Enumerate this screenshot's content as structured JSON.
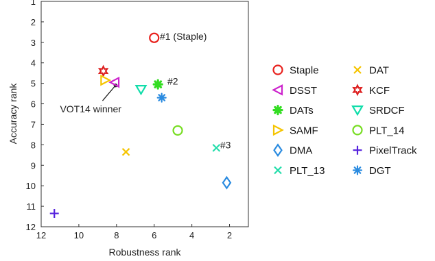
{
  "chart_data": {
    "type": "scatter",
    "xlabel": "Robustness rank",
    "ylabel": "Accuracy rank",
    "xlim": [
      1,
      12
    ],
    "ylim": [
      1,
      12
    ],
    "x_reversed": true,
    "y_reversed": true,
    "x_ticks": [
      12,
      10,
      8,
      6,
      4,
      2
    ],
    "y_ticks": [
      1,
      2,
      3,
      4,
      5,
      6,
      7,
      8,
      9,
      10,
      11,
      12
    ],
    "grid": false,
    "legend_position": "right, outside plot",
    "series": [
      {
        "name": "Staple",
        "marker": "circle",
        "color": "#e8211d",
        "x": 6.0,
        "y": 2.78
      },
      {
        "name": "DAT",
        "marker": "x",
        "color": "#f5c400",
        "x": 7.5,
        "y": 8.35
      },
      {
        "name": "DSST",
        "marker": "triangle-left",
        "color": "#cc22cc",
        "x": 8.1,
        "y": 4.95
      },
      {
        "name": "KCF",
        "marker": "hexagram",
        "color": "#dd1f1f",
        "x": 8.7,
        "y": 4.4
      },
      {
        "name": "DATs",
        "marker": "asterisk-bold",
        "color": "#33dd22",
        "x": 5.8,
        "y": 5.05
      },
      {
        "name": "SRDCF",
        "marker": "triangle-down",
        "color": "#11ddaa",
        "x": 6.7,
        "y": 5.3
      },
      {
        "name": "SAMF",
        "marker": "triangle-right",
        "color": "#f5c400",
        "x": 8.6,
        "y": 4.85
      },
      {
        "name": "PLT_14",
        "marker": "circle",
        "color": "#77dd22",
        "x": 4.75,
        "y": 7.3
      },
      {
        "name": "DMA",
        "marker": "diamond",
        "color": "#2a8be0",
        "x": 2.15,
        "y": 9.85
      },
      {
        "name": "PixelTrack",
        "marker": "plus",
        "color": "#5522dd",
        "x": 11.3,
        "y": 11.35
      },
      {
        "name": "PLT_13",
        "marker": "x",
        "color": "#22ddaa",
        "x": 2.7,
        "y": 8.15
      },
      {
        "name": "DGT",
        "marker": "asterisk",
        "color": "#2a8be0",
        "x": 5.6,
        "y": 5.7
      }
    ],
    "annotations": [
      {
        "text": "#1 (Staple)",
        "x": 5.7,
        "y": 2.7
      },
      {
        "text": "#2",
        "x": 5.3,
        "y": 4.9
      },
      {
        "text": "#3",
        "x": 2.5,
        "y": 8.0
      },
      {
        "text": "VOT14 winner",
        "x": 11.0,
        "y": 6.25,
        "arrow_to": {
          "x": 8.05,
          "y": 5.1
        }
      }
    ]
  }
}
